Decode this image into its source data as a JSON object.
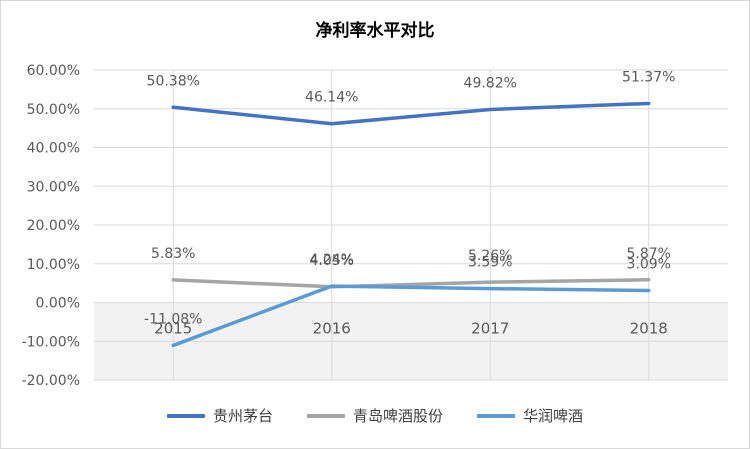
{
  "chart_data": {
    "type": "line",
    "title": "净利率水平对比",
    "categories": [
      "2015",
      "2016",
      "2017",
      "2018"
    ],
    "y_ticks": [
      "60.00%",
      "50.00%",
      "40.00%",
      "30.00%",
      "20.00%",
      "10.00%",
      "0.00%",
      "-10.00%",
      "-20.00%"
    ],
    "ylim": [
      -20,
      60
    ],
    "grid": true,
    "legend_position": "bottom",
    "series": [
      {
        "name": "贵州茅台",
        "color": "#4472c4",
        "values": [
          50.38,
          46.14,
          49.82,
          51.37
        ],
        "labels": [
          "50.38%",
          "46.14%",
          "49.82%",
          "51.37%"
        ]
      },
      {
        "name": "青岛啤酒股份",
        "color": "#a5a5a5",
        "values": [
          5.83,
          4.05,
          5.26,
          5.87
        ],
        "labels": [
          "5.83%",
          "4.05%",
          "5.26%",
          "5.87%"
        ]
      },
      {
        "name": "华润啤酒",
        "color": "#5b9bd5",
        "values": [
          -11.08,
          4.24,
          3.59,
          3.09
        ],
        "labels": [
          "-11.08%",
          "4.24%",
          "3.59%",
          "3.09%"
        ]
      }
    ]
  }
}
